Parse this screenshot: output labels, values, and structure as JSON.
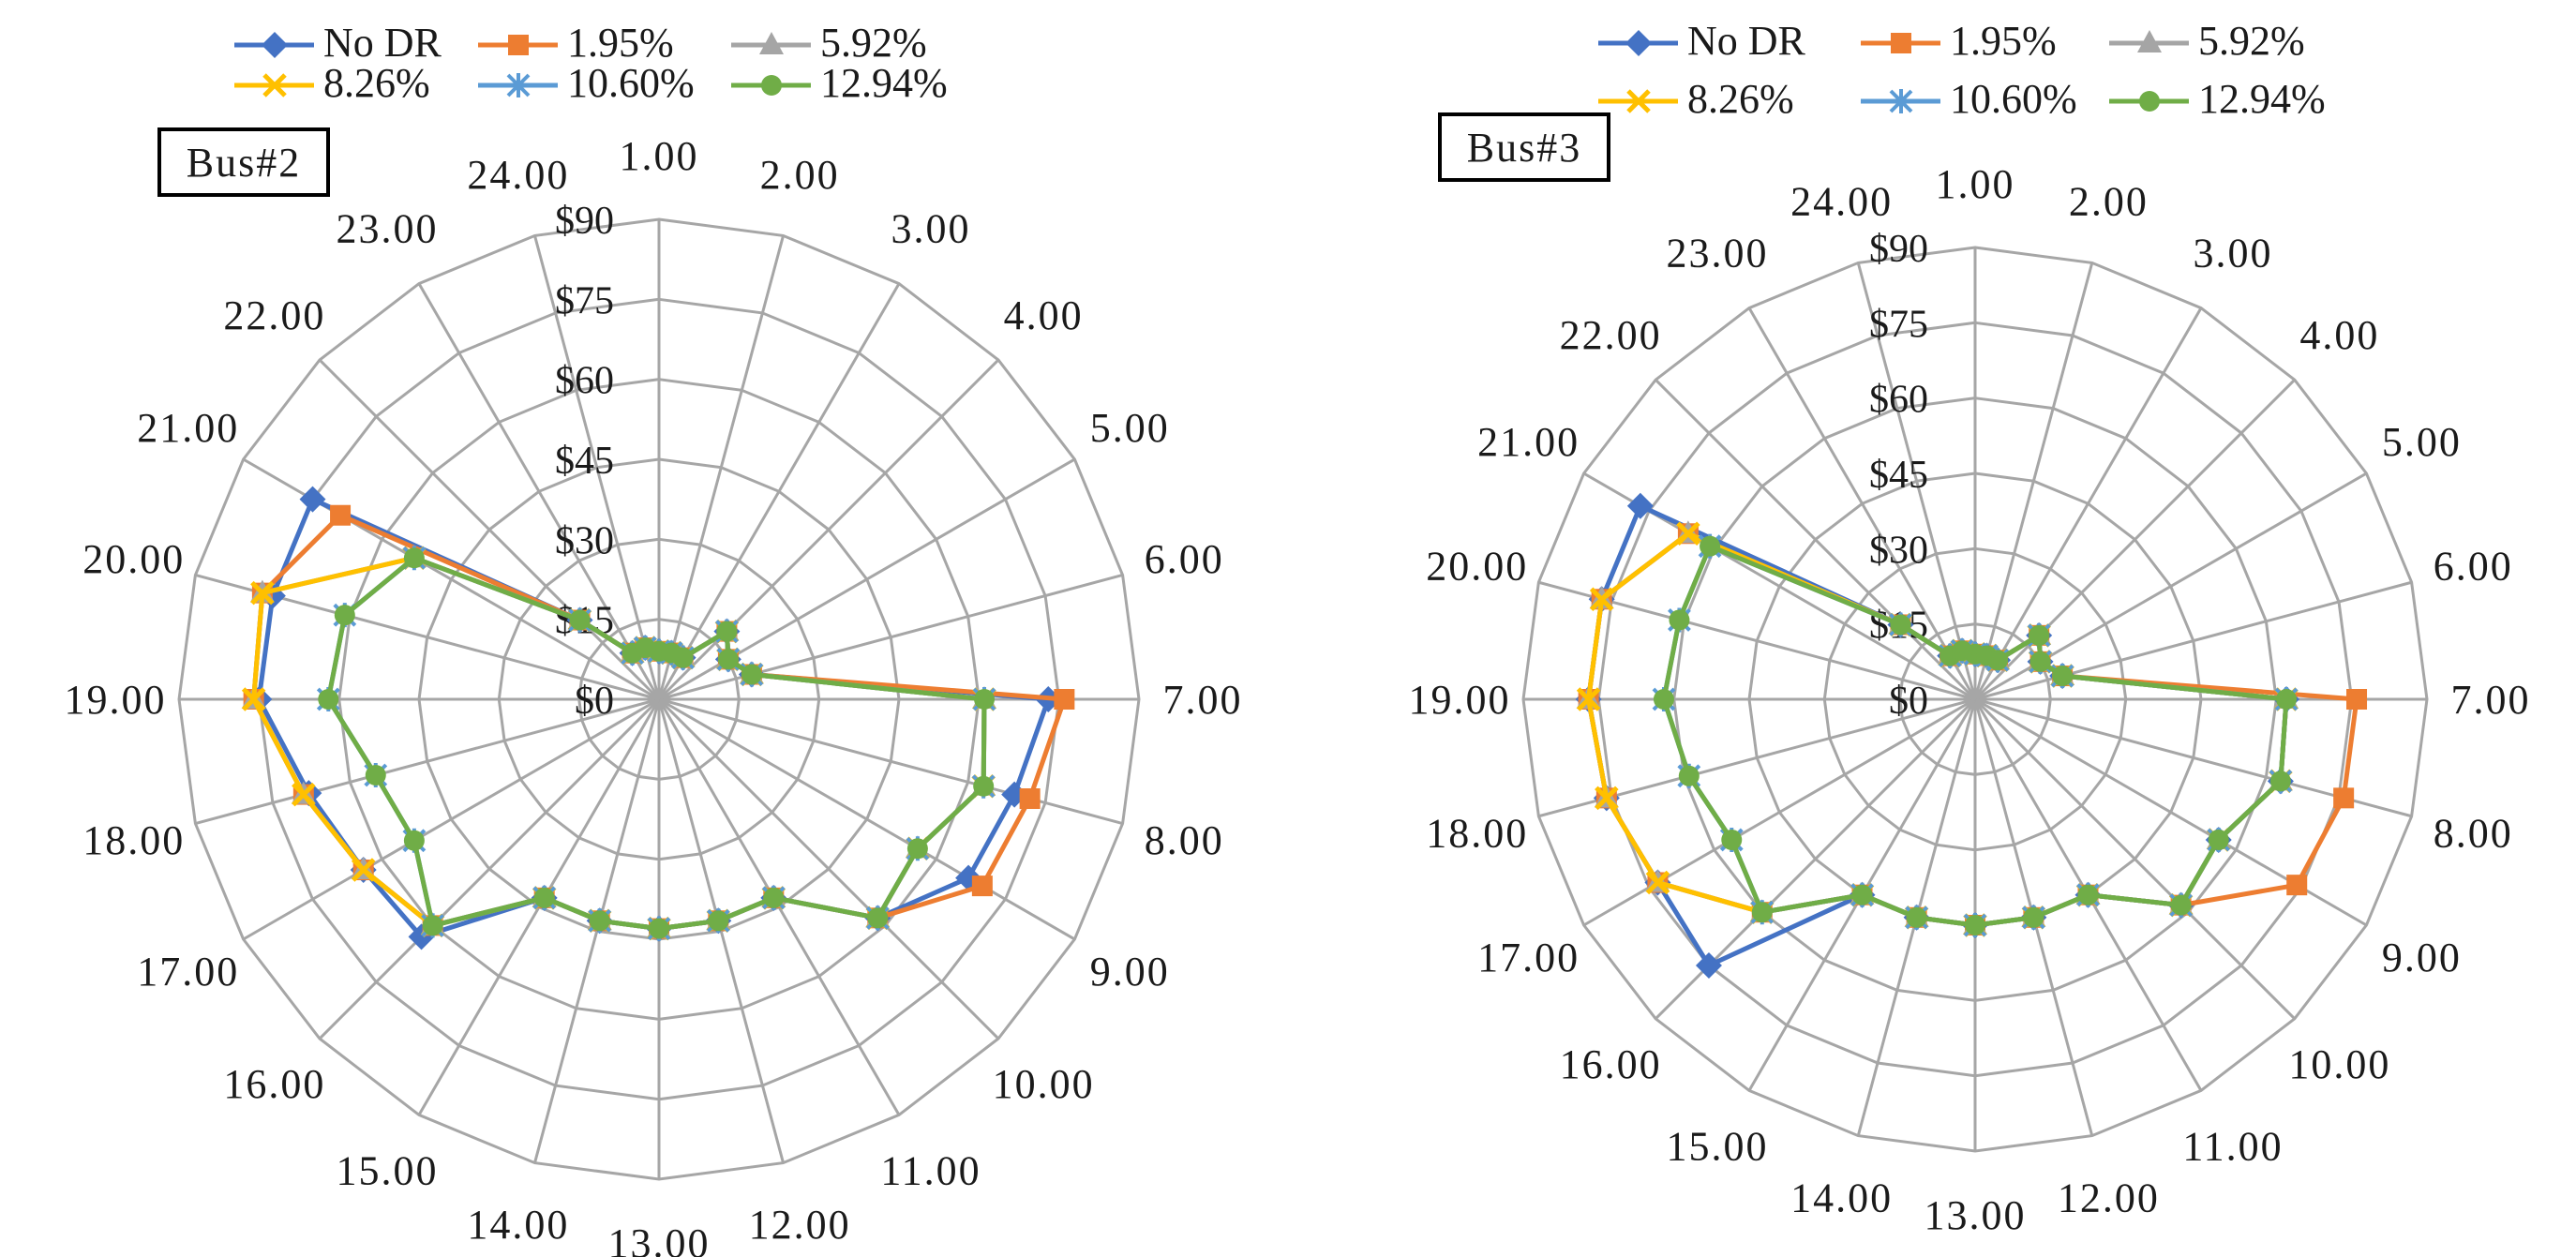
{
  "chart_data": [
    {
      "type": "radar",
      "title": "Bus#2",
      "categories": [
        "1.00",
        "2.00",
        "3.00",
        "4.00",
        "5.00",
        "6.00",
        "7.00",
        "8.00",
        "9.00",
        "10.00",
        "11.00",
        "12.00",
        "13.00",
        "14.00",
        "15.00",
        "16.00",
        "17.00",
        "18.00",
        "19.00",
        "20.00",
        "21.00",
        "22.00",
        "23.00",
        "24.00"
      ],
      "axis_ticks": [
        "$0",
        "$15",
        "$30",
        "$45",
        "$60",
        "$75",
        "$90"
      ],
      "rlim": [
        0,
        90
      ],
      "legend": {
        "position": "top",
        "entries": [
          "No DR",
          "1.95%",
          "5.92%",
          "8.26%",
          "10.60%",
          "12.94%"
        ]
      },
      "series": [
        {
          "name": "No DR",
          "color": "#4472c4",
          "marker": "diamond",
          "values": [
            9,
            9,
            9,
            18,
            15,
            18,
            73,
            69,
            67,
            58,
            43,
            43,
            43,
            43,
            43,
            63,
            64,
            68,
            75,
            75,
            75,
            21,
            10,
            10
          ]
        },
        {
          "name": "1.95%",
          "color": "#ed7d31",
          "marker": "square",
          "values": [
            9,
            9,
            9,
            18,
            15,
            18,
            76,
            72,
            70,
            58,
            43,
            43,
            43,
            43,
            43,
            60,
            64,
            69,
            76,
            77,
            69,
            21,
            10,
            10
          ]
        },
        {
          "name": "5.92%",
          "color": "#a5a5a5",
          "marker": "triangle",
          "values": [
            9,
            9,
            9,
            18,
            15,
            18,
            61,
            63,
            56,
            58,
            43,
            43,
            43,
            43,
            43,
            60,
            64,
            69,
            76,
            77,
            53,
            21,
            10,
            10
          ]
        },
        {
          "name": "8.26%",
          "color": "#ffc000",
          "marker": "x",
          "values": [
            9,
            9,
            9,
            18,
            15,
            18,
            61,
            63,
            56,
            58,
            43,
            43,
            43,
            43,
            43,
            60,
            64,
            69,
            76,
            77,
            53,
            21,
            10,
            10
          ]
        },
        {
          "name": "10.60%",
          "color": "#5b9bd5",
          "marker": "asterisk",
          "values": [
            9,
            9,
            9,
            18,
            15,
            18,
            61,
            63,
            56,
            58,
            43,
            43,
            43,
            43,
            43,
            60,
            53,
            55,
            62,
            61,
            53,
            21,
            10,
            10
          ]
        },
        {
          "name": "12.94%",
          "color": "#70ad47",
          "marker": "circle",
          "values": [
            9,
            9,
            9,
            18,
            15,
            18,
            61,
            63,
            56,
            58,
            43,
            43,
            43,
            43,
            43,
            60,
            53,
            55,
            62,
            61,
            53,
            21,
            10,
            10
          ]
        }
      ]
    },
    {
      "type": "radar",
      "title": "Bus#3",
      "categories": [
        "1.00",
        "2.00",
        "3.00",
        "4.00",
        "5.00",
        "6.00",
        "7.00",
        "8.00",
        "9.00",
        "10.00",
        "11.00",
        "12.00",
        "13.00",
        "14.00",
        "15.00",
        "16.00",
        "17.00",
        "18.00",
        "19.00",
        "20.00",
        "21.00",
        "22.00",
        "23.00",
        "24.00"
      ],
      "axis_ticks": [
        "$0",
        "$15",
        "$30",
        "$45",
        "$60",
        "$75",
        "$90"
      ],
      "rlim": [
        0,
        90
      ],
      "legend": {
        "position": "top",
        "entries": [
          "No DR",
          "1.95%",
          "5.92%",
          "8.26%",
          "10.60%",
          "12.94%"
        ]
      },
      "series": [
        {
          "name": "No DR",
          "color": "#4472c4",
          "marker": "diamond",
          "values": [
            9,
            9,
            9,
            18,
            15,
            18,
            62,
            63,
            56,
            58,
            45,
            45,
            45,
            45,
            45,
            75,
            73,
            76,
            77,
            77,
            77,
            21,
            10,
            10
          ]
        },
        {
          "name": "1.95%",
          "color": "#ed7d31",
          "marker": "square",
          "values": [
            9,
            9,
            9,
            18,
            15,
            18,
            76,
            76,
            74,
            58,
            45,
            45,
            45,
            45,
            45,
            60,
            73,
            76,
            77,
            77,
            66,
            21,
            10,
            10
          ]
        },
        {
          "name": "5.92%",
          "color": "#a5a5a5",
          "marker": "triangle",
          "values": [
            9,
            9,
            9,
            18,
            15,
            18,
            62,
            63,
            56,
            58,
            45,
            45,
            45,
            45,
            45,
            60,
            73,
            76,
            77,
            77,
            66,
            21,
            10,
            10
          ]
        },
        {
          "name": "8.26%",
          "color": "#ffc000",
          "marker": "x",
          "values": [
            9,
            9,
            9,
            18,
            15,
            18,
            62,
            63,
            56,
            58,
            45,
            45,
            45,
            45,
            45,
            60,
            73,
            76,
            77,
            77,
            66,
            21,
            10,
            10
          ]
        },
        {
          "name": "10.60%",
          "color": "#5b9bd5",
          "marker": "asterisk",
          "values": [
            9,
            9,
            9,
            18,
            15,
            18,
            62,
            63,
            56,
            58,
            45,
            45,
            45,
            45,
            45,
            60,
            56,
            59,
            62,
            61,
            61,
            21,
            10,
            10
          ]
        },
        {
          "name": "12.94%",
          "color": "#70ad47",
          "marker": "circle",
          "values": [
            9,
            9,
            9,
            18,
            15,
            18,
            62,
            63,
            56,
            58,
            45,
            45,
            45,
            45,
            45,
            60,
            56,
            59,
            62,
            61,
            61,
            21,
            10,
            10
          ]
        }
      ]
    }
  ]
}
